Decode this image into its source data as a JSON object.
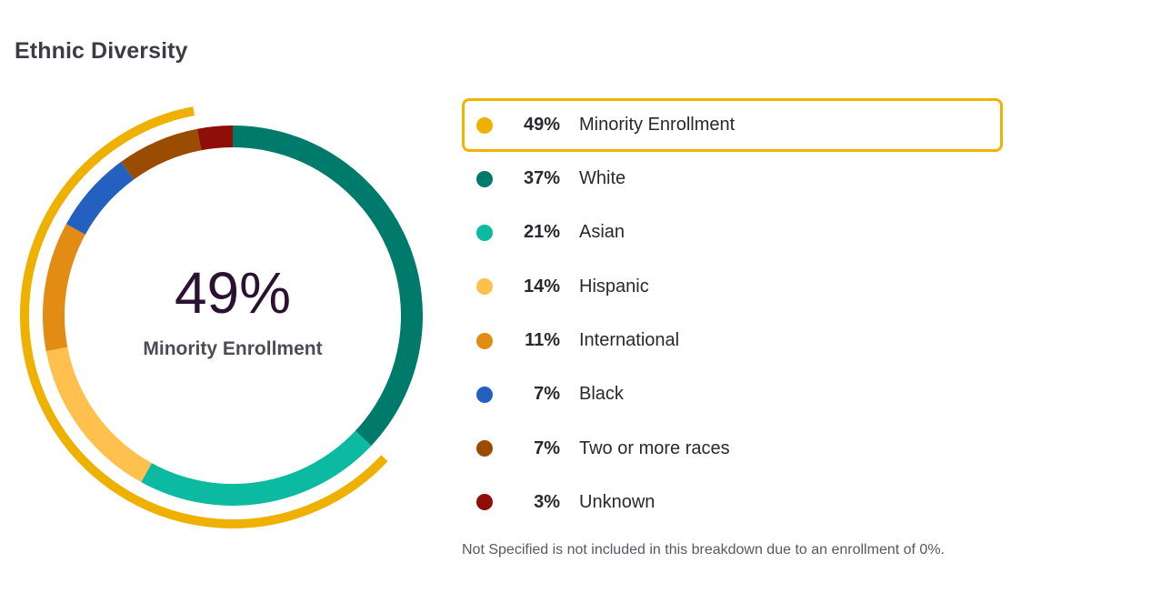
{
  "section": {
    "title": "Ethnic Diversity"
  },
  "center": {
    "value": "49%",
    "label": "Minority Enrollment"
  },
  "colors": {
    "highlight": "#f0b400",
    "minority_arc": "#eeb100"
  },
  "legend": [
    {
      "pct": "49%",
      "label": "Minority Enrollment",
      "color": "#eeb100",
      "highlight": true
    },
    {
      "pct": "37%",
      "label": "White",
      "color": "#007a6a",
      "highlight": false
    },
    {
      "pct": "21%",
      "label": "Asian",
      "color": "#0cbaa2",
      "highlight": false
    },
    {
      "pct": "14%",
      "label": "Hispanic",
      "color": "#ffc04d",
      "highlight": false
    },
    {
      "pct": "11%",
      "label": "International",
      "color": "#e38c14",
      "highlight": false
    },
    {
      "pct": "7%",
      "label": "Black",
      "color": "#2360bf",
      "highlight": false
    },
    {
      "pct": "7%",
      "label": "Two or more races",
      "color": "#9a4c00",
      "highlight": false
    },
    {
      "pct": "3%",
      "label": "Unknown",
      "color": "#8f0e08",
      "highlight": false
    }
  ],
  "footnote": "Not Specified is not included in this breakdown due to an enrollment of 0%.",
  "chart_data": {
    "type": "pie",
    "title": "Ethnic Diversity",
    "categories": [
      "White",
      "Asian",
      "Hispanic",
      "International",
      "Black",
      "Two or more races",
      "Unknown"
    ],
    "values": [
      37,
      21,
      14,
      11,
      7,
      7,
      3
    ],
    "colors": [
      "#007a6a",
      "#0cbaa2",
      "#ffc04d",
      "#e38c14",
      "#2360bf",
      "#9a4c00",
      "#8f0e08"
    ],
    "minority_enrollment": 49,
    "minority_groups": [
      "Asian",
      "Hispanic",
      "Black",
      "Two or more races"
    ]
  }
}
